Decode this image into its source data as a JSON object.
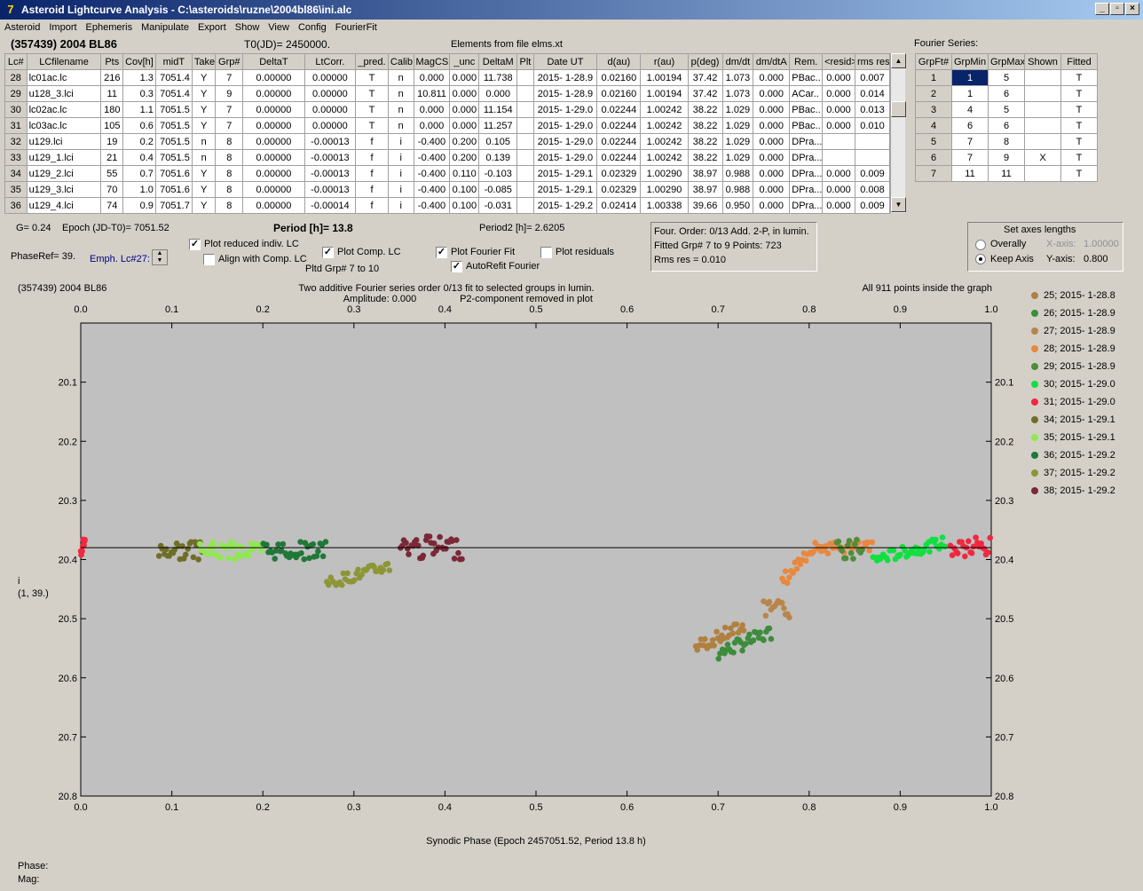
{
  "window": {
    "title": "Asteroid Lightcurve Analysis - C:\\asteroids\\ruzne\\2004bl86\\ini.alc"
  },
  "menu": [
    "Asteroid",
    "Import",
    "Ephemeris",
    "Manipulate",
    "Export",
    "Show",
    "View",
    "Config",
    "FourierFit"
  ],
  "header": {
    "asteroid": "(357439) 2004 BL86",
    "t0": "T0(JD)= 2450000.",
    "elements": "Elements from file elms.xt",
    "fourier_label": "Fourier Series:"
  },
  "lc_table": {
    "columns": [
      "Lc#",
      "LCfilename",
      "Pts",
      "Cov[h]",
      "midT",
      "Take",
      "Grp#",
      "DeltaT",
      "LtCorr.",
      "_pred.",
      "Calib.",
      "MagCS",
      "_unc",
      "DeltaM",
      "Plt",
      "Date UT",
      "d(au)",
      "r(au)",
      "p(deg)",
      "dm/dt",
      "dm/dtA",
      "Rem.",
      "<resid>",
      "rms res"
    ],
    "rows": [
      [
        "28",
        "lc01ac.lc",
        "216",
        "1.3",
        "7051.4",
        "Y",
        "7",
        "0.00000",
        "0.00000",
        "T",
        "n",
        "0.000",
        "0.000",
        "11.738",
        "",
        "2015- 1-28.9",
        "0.02160",
        "1.00194",
        "37.42",
        "1.073",
        "0.000",
        "PBac..",
        "0.000",
        "0.007"
      ],
      [
        "29",
        "u128_3.lci",
        "11",
        "0.3",
        "7051.4",
        "Y",
        "9",
        "0.00000",
        "0.00000",
        "T",
        "n",
        "10.811",
        "0.000",
        "0.000",
        "",
        "2015- 1-28.9",
        "0.02160",
        "1.00194",
        "37.42",
        "1.073",
        "0.000",
        "ACar..",
        "0.000",
        "0.014"
      ],
      [
        "30",
        "lc02ac.lc",
        "180",
        "1.1",
        "7051.5",
        "Y",
        "7",
        "0.00000",
        "0.00000",
        "T",
        "n",
        "0.000",
        "0.000",
        "11.154",
        "",
        "2015- 1-29.0",
        "0.02244",
        "1.00242",
        "38.22",
        "1.029",
        "0.000",
        "PBac..",
        "0.000",
        "0.013"
      ],
      [
        "31",
        "lc03ac.lc",
        "105",
        "0.6",
        "7051.5",
        "Y",
        "7",
        "0.00000",
        "0.00000",
        "T",
        "n",
        "0.000",
        "0.000",
        "11.257",
        "",
        "2015- 1-29.0",
        "0.02244",
        "1.00242",
        "38.22",
        "1.029",
        "0.000",
        "PBac..",
        "0.000",
        "0.010"
      ],
      [
        "32",
        "u129.lci",
        "19",
        "0.2",
        "7051.5",
        "n",
        "8",
        "0.00000",
        "-0.00013",
        "f",
        "i",
        "-0.400",
        "0.200",
        "0.105",
        "",
        "2015- 1-29.0",
        "0.02244",
        "1.00242",
        "38.22",
        "1.029",
        "0.000",
        "DPra...",
        "",
        ""
      ],
      [
        "33",
        "u129_1.lci",
        "21",
        "0.4",
        "7051.5",
        "n",
        "8",
        "0.00000",
        "-0.00013",
        "f",
        "i",
        "-0.400",
        "0.200",
        "0.139",
        "",
        "2015- 1-29.0",
        "0.02244",
        "1.00242",
        "38.22",
        "1.029",
        "0.000",
        "DPra...",
        "",
        ""
      ],
      [
        "34",
        "u129_2.lci",
        "55",
        "0.7",
        "7051.6",
        "Y",
        "8",
        "0.00000",
        "-0.00013",
        "f",
        "i",
        "-0.400",
        "0.110",
        "-0.103",
        "",
        "2015- 1-29.1",
        "0.02329",
        "1.00290",
        "38.97",
        "0.988",
        "0.000",
        "DPra...",
        "0.000",
        "0.009"
      ],
      [
        "35",
        "u129_3.lci",
        "70",
        "1.0",
        "7051.6",
        "Y",
        "8",
        "0.00000",
        "-0.00013",
        "f",
        "i",
        "-0.400",
        "0.100",
        "-0.085",
        "",
        "2015- 1-29.1",
        "0.02329",
        "1.00290",
        "38.97",
        "0.988",
        "0.000",
        "DPra...",
        "0.000",
        "0.008"
      ],
      [
        "36",
        "u129_4.lci",
        "74",
        "0.9",
        "7051.7",
        "Y",
        "8",
        "0.00000",
        "-0.00014",
        "f",
        "i",
        "-0.400",
        "0.100",
        "-0.031",
        "",
        "2015- 1-29.2",
        "0.02414",
        "1.00338",
        "39.66",
        "0.950",
        "0.000",
        "DPra...",
        "0.000",
        "0.009"
      ]
    ]
  },
  "fourier_table": {
    "columns": [
      "GrpFt#",
      "GrpMin",
      "GrpMax",
      "Shown",
      "Fitted"
    ],
    "rows": [
      [
        "1",
        "1",
        "5",
        "",
        "T"
      ],
      [
        "2",
        "1",
        "6",
        "",
        "T"
      ],
      [
        "3",
        "4",
        "5",
        "",
        "T"
      ],
      [
        "4",
        "6",
        "6",
        "",
        "T"
      ],
      [
        "5",
        "7",
        "8",
        "",
        "T"
      ],
      [
        "6",
        "7",
        "9",
        "X",
        "T"
      ],
      [
        "7",
        "11",
        "11",
        "",
        "T"
      ]
    ]
  },
  "controls": {
    "g": "G= 0.24",
    "epoch": "Epoch (JD-T0)= 7051.52",
    "period": "Period [h]= 13.8",
    "period2": "Period2 [h]= 2.6205",
    "phaseref": "PhaseRef= 39.",
    "emph": "Emph. Lc#27:",
    "plot_reduced": "Plot reduced indiv. LC",
    "align": "Align with Comp. LC",
    "plot_comp": "Plot Comp. LC",
    "pltd_grp": "Pltd Grp#  7  to  10",
    "plot_fourier": "Plot Fourier Fit",
    "autorefit": "AutoRefit Fourier",
    "plot_resid": "Plot residuals"
  },
  "info_panel": {
    "line1": "Four. Order:  0/13    Add. 2-P, in lumin.",
    "line2": "Fitted Grp# 7 to 9     Points: 723",
    "line3": "Rms res     = 0.010"
  },
  "axes_panel": {
    "title": "Set axes lengths",
    "overall": "Overally",
    "keep": "Keep Axis",
    "xaxis": "X-axis:",
    "xval": "1.00000",
    "yaxis": "Y-axis:",
    "yval": "0.800"
  },
  "plot_text": {
    "left_title": "(357439) 2004 BL86",
    "center1": "Two additive Fourier series order 0/13 fit to selected groups in lumin.",
    "center2a": "Amplitude: 0.000",
    "center2b": "P2-component removed in plot",
    "right_title": "All 911 points inside the graph",
    "ylabel1": "i",
    "ylabel2": "(1, 39.)"
  },
  "status": {
    "phase": "Phase:",
    "mag": "Mag:"
  },
  "chart_data": {
    "type": "scatter",
    "xlabel": "Synodic Phase (Epoch 2457051.52, Period 13.8 h)",
    "xlim": [
      0.0,
      1.0
    ],
    "ylim": [
      20.8,
      20.0
    ],
    "x_ticks": [
      0.0,
      0.1,
      0.2,
      0.3,
      0.4,
      0.5,
      0.6,
      0.7,
      0.8,
      0.9,
      1.0
    ],
    "x_tick_labels": [
      "0.0",
      "0.1",
      "0.2",
      "0.3",
      "0.4",
      "0.5",
      "0.6",
      "0.7",
      "0.8",
      "0.9",
      "1.0"
    ],
    "y_ticks": [
      20.1,
      20.2,
      20.3,
      20.4,
      20.5,
      20.6,
      20.7,
      20.8
    ],
    "y_tick_labels": [
      "20.1",
      "20.2",
      "20.3",
      "20.4",
      "20.5",
      "20.6",
      "20.7",
      "20.8"
    ],
    "fit_level": 20.38,
    "series": [
      {
        "name": "25; 2015- 1-28.8",
        "color": "#b08040",
        "segments": [
          [
            0.675,
            0.73,
            20.5,
            20.56
          ]
        ]
      },
      {
        "name": "26; 2015- 1-28.9",
        "color": "#3c8c3c",
        "segments": [
          [
            0.7,
            0.76,
            20.51,
            20.57
          ]
        ]
      },
      {
        "name": "27; 2015- 1-28.9",
        "color": "#b8864a",
        "segments": [
          [
            0.75,
            0.78,
            20.47,
            20.5
          ]
        ]
      },
      {
        "name": "28; 2015- 1-28.9",
        "color": "#e88840",
        "segments": [
          [
            0.77,
            0.8,
            20.38,
            20.45
          ],
          [
            0.8,
            0.87,
            20.37,
            20.39
          ]
        ]
      },
      {
        "name": "29; 2015- 1-28.9",
        "color": "#508c3c",
        "segments": [
          [
            0.83,
            0.86,
            20.36,
            20.4
          ]
        ]
      },
      {
        "name": "30; 2015- 1-29.0",
        "color": "#10e040",
        "segments": [
          [
            0.87,
            0.95,
            20.36,
            20.41
          ]
        ]
      },
      {
        "name": "31; 2015- 1-29.0",
        "color": "#f02840",
        "segments": [
          [
            0.0,
            0.005,
            20.35,
            20.4
          ],
          [
            0.955,
            1.0,
            20.36,
            20.4
          ]
        ]
      },
      {
        "name": "34; 2015- 1-29.1",
        "color": "#6e6e28",
        "segments": [
          [
            0.085,
            0.135,
            20.37,
            20.4
          ]
        ]
      },
      {
        "name": "35; 2015- 1-29.1",
        "color": "#90e850",
        "segments": [
          [
            0.13,
            0.2,
            20.37,
            20.4
          ]
        ]
      },
      {
        "name": "36; 2015- 1-29.2",
        "color": "#207838",
        "segments": [
          [
            0.2,
            0.27,
            20.37,
            20.4
          ]
        ]
      },
      {
        "name": "37; 2015- 1-29.2",
        "color": "#8c9638",
        "segments": [
          [
            0.27,
            0.34,
            20.4,
            20.45
          ]
        ]
      },
      {
        "name": "38; 2015- 1-29.2",
        "color": "#7a2838",
        "segments": [
          [
            0.35,
            0.42,
            20.36,
            20.4
          ]
        ]
      }
    ]
  }
}
